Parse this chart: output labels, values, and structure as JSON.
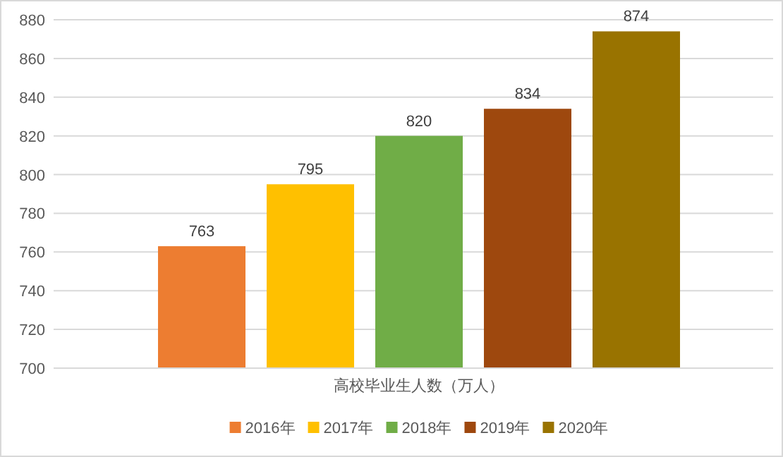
{
  "chart_data": {
    "type": "bar",
    "categories": [
      "高校毕业生人数（万人）"
    ],
    "series": [
      {
        "name": "2016年",
        "color": "#ed7d31",
        "values": [
          763
        ]
      },
      {
        "name": "2017年",
        "color": "#ffc000",
        "values": [
          795
        ]
      },
      {
        "name": "2018年",
        "color": "#70ad47",
        "values": [
          820
        ]
      },
      {
        "name": "2019年",
        "color": "#9e480e",
        "values": [
          834
        ]
      },
      {
        "name": "2020年",
        "color": "#997300",
        "values": [
          874
        ]
      }
    ],
    "ylim": [
      700,
      880
    ],
    "yticks": [
      700,
      720,
      740,
      760,
      780,
      800,
      820,
      840,
      860,
      880
    ],
    "grid": "y",
    "legend": "bottom",
    "data_labels": true
  }
}
